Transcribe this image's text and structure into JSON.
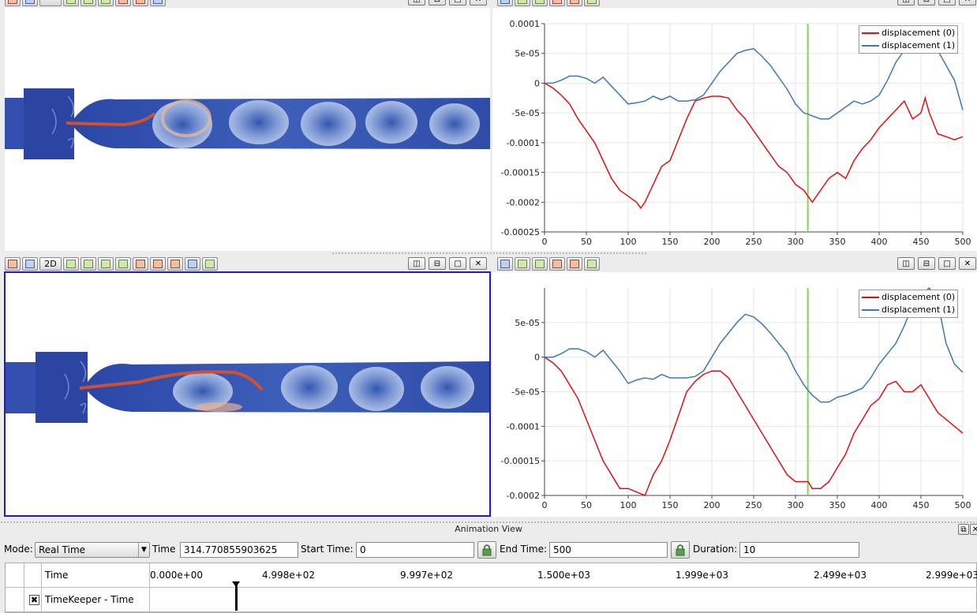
{
  "views": {
    "top_right_chart": {
      "legend": [
        "displacement (0)",
        "displacement (1)"
      ],
      "y_ticks": [
        "0.0001",
        "5e-05",
        "0",
        "-5e-05",
        "-0.0001",
        "-0.00015",
        "-0.0002",
        "-0.00025"
      ],
      "x_ticks": [
        "0",
        "50",
        "100",
        "150",
        "200",
        "250",
        "300",
        "350",
        "400",
        "450",
        "500"
      ]
    },
    "bottom_left_toolbar": {
      "mode_label": "2D"
    },
    "bottom_right_chart": {
      "legend": [
        "displacement (0)",
        "displacement (1)"
      ],
      "y_ticks": [
        "5e-05",
        "0",
        "-5e-05",
        "-0.0001",
        "-0.00015",
        "-0.0002"
      ],
      "x_ticks": [
        "0",
        "50",
        "100",
        "150",
        "200",
        "250",
        "300",
        "350",
        "400",
        "450",
        "500"
      ]
    }
  },
  "chart_data": [
    {
      "type": "line",
      "xlim": [
        0,
        500
      ],
      "ylim": [
        -0.00025,
        0.0001
      ],
      "time_marker": 314.77,
      "series": [
        {
          "name": "displacement (0)",
          "color": "#e01010",
          "x": [
            0,
            10,
            20,
            30,
            40,
            50,
            60,
            70,
            80,
            90,
            100,
            110,
            115,
            120,
            130,
            140,
            150,
            160,
            170,
            180,
            190,
            200,
            210,
            220,
            230,
            240,
            250,
            260,
            270,
            280,
            290,
            300,
            310,
            315,
            320,
            330,
            340,
            350,
            360,
            370,
            380,
            390,
            400,
            410,
            420,
            430,
            440,
            450,
            455,
            460,
            470,
            480,
            490,
            500
          ],
          "y": [
            0,
            -8e-06,
            -2e-05,
            -3.5e-05,
            -6e-05,
            -8e-05,
            -0.0001,
            -0.00013,
            -0.00016,
            -0.00018,
            -0.00019,
            -0.0002,
            -0.00021,
            -0.0002,
            -0.00017,
            -0.00014,
            -0.00013,
            -9.5e-05,
            -6e-05,
            -3e-05,
            -2.5e-05,
            -2.2e-05,
            -2.2e-05,
            -2.5e-05,
            -4.5e-05,
            -6e-05,
            -8e-05,
            -0.0001,
            -0.00012,
            -0.00014,
            -0.00015,
            -0.00017,
            -0.00018,
            -0.00019,
            -0.0002,
            -0.00018,
            -0.00016,
            -0.00015,
            -0.00016,
            -0.00013,
            -0.00011,
            -9.5e-05,
            -7.5e-05,
            -6e-05,
            -4.5e-05,
            -3e-05,
            -6e-05,
            -5e-05,
            -2.5e-05,
            -5e-05,
            -8.5e-05,
            -9e-05,
            -9.5e-05,
            -9e-05
          ]
        },
        {
          "name": "displacement (1)",
          "color": "#3a78b8",
          "x": [
            0,
            10,
            20,
            30,
            40,
            50,
            60,
            70,
            80,
            90,
            100,
            110,
            120,
            130,
            140,
            150,
            160,
            170,
            180,
            190,
            200,
            210,
            220,
            230,
            240,
            250,
            260,
            270,
            280,
            290,
            300,
            310,
            315,
            320,
            330,
            340,
            350,
            360,
            370,
            380,
            390,
            400,
            410,
            420,
            430,
            440,
            450,
            460,
            470,
            480,
            490,
            500
          ],
          "y": [
            0,
            0,
            5e-06,
            1.2e-05,
            1.2e-05,
            8e-06,
            0,
            1e-05,
            -5e-06,
            -2e-05,
            -3.5e-05,
            -3.3e-05,
            -3e-05,
            -2.2e-05,
            -2.8e-05,
            -2.2e-05,
            -3e-05,
            -3e-05,
            -2.8e-05,
            -2e-05,
            0,
            2e-05,
            3.5e-05,
            5e-05,
            5.5e-05,
            5.8e-05,
            4.5e-05,
            3e-05,
            1e-05,
            -1e-05,
            -3.5e-05,
            -5e-05,
            -5.2e-05,
            -5.5e-05,
            -6e-05,
            -6e-05,
            -5e-05,
            -4e-05,
            -3e-05,
            -3.5e-05,
            -3e-05,
            -2e-05,
            5e-06,
            3.5e-05,
            5.5e-05,
            7e-05,
            7.5e-05,
            7e-05,
            5.5e-05,
            3e-05,
            5e-06,
            -4.5e-05
          ]
        }
      ]
    },
    {
      "type": "line",
      "xlim": [
        0,
        500
      ],
      "ylim": [
        -0.0002,
        0.0001
      ],
      "time_marker": 314.77,
      "series": [
        {
          "name": "displacement (0)",
          "color": "#e01010",
          "x": [
            0,
            10,
            20,
            30,
            40,
            50,
            60,
            70,
            80,
            90,
            100,
            110,
            120,
            130,
            140,
            150,
            160,
            170,
            180,
            190,
            200,
            210,
            220,
            230,
            240,
            250,
            260,
            270,
            280,
            290,
            300,
            310,
            315,
            320,
            330,
            340,
            350,
            360,
            370,
            380,
            390,
            400,
            410,
            420,
            430,
            440,
            450,
            460,
            470,
            480,
            490,
            500
          ],
          "y": [
            0,
            -8e-06,
            -2e-05,
            -4e-05,
            -6e-05,
            -9e-05,
            -0.00012,
            -0.00015,
            -0.00017,
            -0.00019,
            -0.00019,
            -0.000195,
            -0.0002,
            -0.00017,
            -0.00015,
            -0.00012,
            -8.5e-05,
            -5e-05,
            -3.5e-05,
            -2.5e-05,
            -2e-05,
            -2e-05,
            -3e-05,
            -5e-05,
            -7e-05,
            -9e-05,
            -0.00011,
            -0.00013,
            -0.00015,
            -0.00017,
            -0.00018,
            -0.00018,
            -0.00018,
            -0.00019,
            -0.00019,
            -0.00018,
            -0.00016,
            -0.00014,
            -0.00011,
            -9e-05,
            -7e-05,
            -6e-05,
            -4e-05,
            -3.5e-05,
            -5e-05,
            -5e-05,
            -4e-05,
            -6e-05,
            -8e-05,
            -9e-05,
            -0.0001,
            -0.00011
          ]
        },
        {
          "name": "displacement (1)",
          "color": "#3a78b8",
          "x": [
            0,
            10,
            20,
            30,
            40,
            50,
            60,
            70,
            80,
            90,
            100,
            110,
            120,
            130,
            140,
            150,
            160,
            170,
            180,
            190,
            200,
            210,
            220,
            230,
            240,
            250,
            260,
            270,
            280,
            290,
            300,
            310,
            315,
            320,
            330,
            340,
            350,
            360,
            370,
            380,
            390,
            400,
            410,
            420,
            430,
            440,
            450,
            460,
            470,
            480,
            490,
            500
          ],
          "y": [
            0,
            0,
            5e-06,
            1.2e-05,
            1.2e-05,
            8e-06,
            0,
            1e-05,
            -5e-06,
            -2e-05,
            -3.8e-05,
            -3.3e-05,
            -3e-05,
            -3.2e-05,
            -2.5e-05,
            -3e-05,
            -3e-05,
            -3e-05,
            -2.8e-05,
            -2e-05,
            0,
            2e-05,
            3.5e-05,
            5e-05,
            6.2e-05,
            5.8e-05,
            4.8e-05,
            3.5e-05,
            2e-05,
            5e-06,
            -2e-05,
            -4e-05,
            -4.8e-05,
            -5.5e-05,
            -6.5e-05,
            -6.5e-05,
            -5.8e-05,
            -5.5e-05,
            -5e-05,
            -4.5e-05,
            -3e-05,
            -1e-05,
            5e-06,
            2e-05,
            4.5e-05,
            7.5e-05,
            9e-05,
            0.0001,
            8e-05,
            2e-05,
            -1e-05,
            -2.2e-05
          ]
        }
      ]
    }
  ],
  "animation": {
    "header": "Animation View",
    "mode_label": "Mode:",
    "mode_value": "Real Time",
    "time_label": "Time",
    "time_value": "314.770855903625",
    "start_label": "Start Time:",
    "start_value": "0",
    "end_label": "End Time:",
    "end_value": "500",
    "duration_label": "Duration:",
    "duration_value": "10",
    "timeline": {
      "header_label": "Time",
      "ticks": [
        "0.000e+00",
        "4.998e+02",
        "9.997e+02",
        "1.500e+03",
        "1.999e+03",
        "2.499e+03",
        "2.999e+03"
      ],
      "track_label": "TimeKeeper - Time",
      "track_checked": "✖"
    }
  }
}
